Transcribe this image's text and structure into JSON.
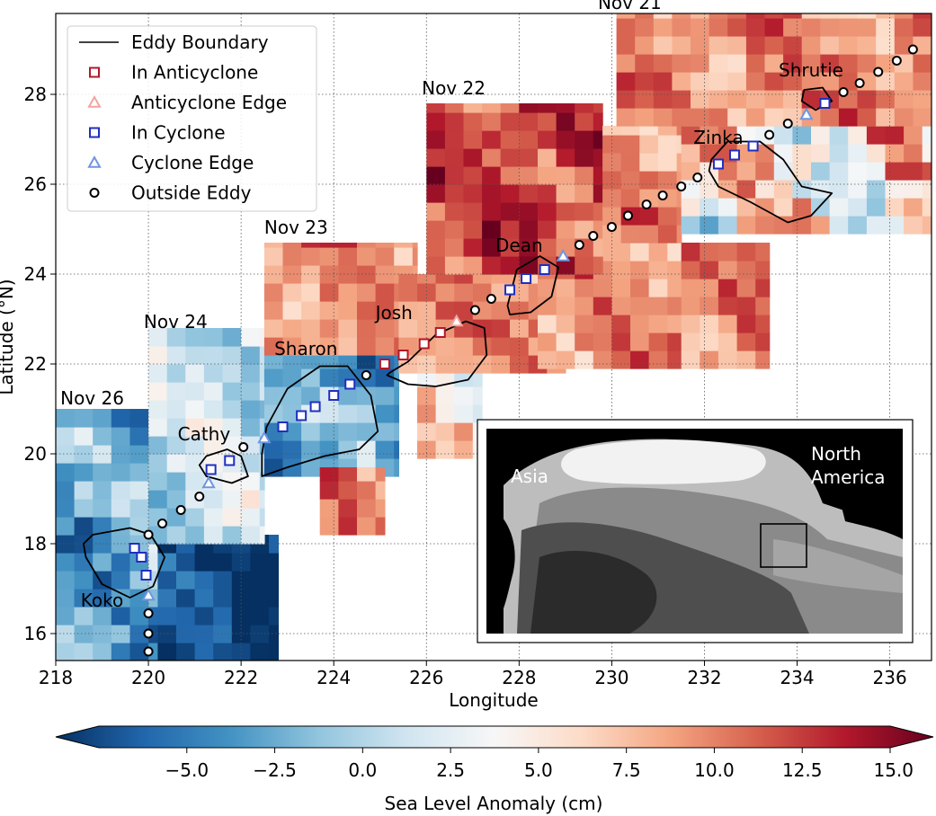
{
  "chart_data": {
    "type": "scatter",
    "title": "",
    "xlabel": "Longitude",
    "ylabel": "Latitude (°N)",
    "xlim": [
      218,
      236.9
    ],
    "ylim": [
      15.4,
      29.8
    ],
    "xticks": [
      218,
      220,
      222,
      224,
      226,
      228,
      230,
      232,
      234,
      236
    ],
    "yticks": [
      16,
      18,
      20,
      22,
      24,
      26,
      28
    ],
    "grid": true,
    "background": "sea level anomaly map (red = positive, blue = negative)",
    "legend": {
      "placement": "top-left",
      "entries": [
        {
          "label": "Eddy Boundary",
          "marker": "line",
          "color": "#000000"
        },
        {
          "label": "In Anticyclone",
          "marker": "square",
          "color": "#b2182b"
        },
        {
          "label": "Anticyclone Edge",
          "marker": "triangle",
          "color": "#f4a3a0"
        },
        {
          "label": "In Cyclone",
          "marker": "square",
          "color": "#1f2fbf"
        },
        {
          "label": "Cyclone Edge",
          "marker": "triangle",
          "color": "#6f96e0"
        },
        {
          "label": "Outside Eddy",
          "marker": "circle",
          "color": "#000000"
        }
      ]
    },
    "date_labels": [
      {
        "text": "Nov 21",
        "x": 229.7,
        "y": 29.9
      },
      {
        "text": "Nov 22",
        "x": 225.9,
        "y": 28.0
      },
      {
        "text": "Nov 23",
        "x": 222.5,
        "y": 24.9
      },
      {
        "text": "Nov 24",
        "x": 219.9,
        "y": 22.8
      },
      {
        "text": "Nov 26",
        "x": 218.1,
        "y": 21.1
      }
    ],
    "eddies": [
      {
        "name": "Koko",
        "type": "cyclone",
        "label_x": 219.0,
        "label_y": 16.6,
        "boundary": [
          [
            218.8,
            18.2
          ],
          [
            219.6,
            18.35
          ],
          [
            220.05,
            18.2
          ],
          [
            220.35,
            17.7
          ],
          [
            220.1,
            17.05
          ],
          [
            219.6,
            16.8
          ],
          [
            219.0,
            17.1
          ],
          [
            218.65,
            17.7
          ],
          [
            218.6,
            18.0
          ]
        ]
      },
      {
        "name": "Cathy",
        "type": "cyclone",
        "label_x": 221.2,
        "label_y": 20.3,
        "boundary": [
          [
            221.25,
            19.95
          ],
          [
            221.7,
            20.1
          ],
          [
            222.0,
            19.95
          ],
          [
            222.15,
            19.5
          ],
          [
            221.8,
            19.35
          ],
          [
            221.25,
            19.5
          ],
          [
            221.1,
            19.75
          ]
        ]
      },
      {
        "name": "Sharon",
        "type": "cyclone",
        "label_x": 223.4,
        "label_y": 22.2,
        "boundary": [
          [
            222.55,
            20.6
          ],
          [
            223.0,
            21.45
          ],
          [
            223.7,
            21.95
          ],
          [
            224.3,
            21.95
          ],
          [
            224.8,
            21.3
          ],
          [
            224.95,
            20.5
          ],
          [
            224.55,
            20.1
          ],
          [
            223.8,
            19.95
          ],
          [
            223.0,
            19.7
          ],
          [
            222.45,
            19.5
          ],
          [
            222.45,
            20.0
          ]
        ]
      },
      {
        "name": "Josh",
        "type": "anticyclone",
        "label_x": 225.3,
        "label_y": 23.0,
        "boundary": [
          [
            225.2,
            21.8
          ],
          [
            225.6,
            22.05
          ],
          [
            226.2,
            22.65
          ],
          [
            226.85,
            22.95
          ],
          [
            227.25,
            22.8
          ],
          [
            227.3,
            22.2
          ],
          [
            226.9,
            21.65
          ],
          [
            226.2,
            21.5
          ],
          [
            225.6,
            21.55
          ],
          [
            225.15,
            21.75
          ]
        ]
      },
      {
        "name": "Dean",
        "type": "cyclone",
        "label_x": 228.0,
        "label_y": 24.5,
        "boundary": [
          [
            227.75,
            23.3
          ],
          [
            227.95,
            24.1
          ],
          [
            228.45,
            24.4
          ],
          [
            228.85,
            24.15
          ],
          [
            228.7,
            23.5
          ],
          [
            228.25,
            23.15
          ],
          [
            227.8,
            23.1
          ]
        ]
      },
      {
        "name": "Zinka",
        "type": "cyclone",
        "label_x": 232.3,
        "label_y": 26.9,
        "boundary": [
          [
            232.15,
            26.55
          ],
          [
            232.5,
            26.95
          ],
          [
            233.2,
            26.95
          ],
          [
            233.7,
            26.55
          ],
          [
            234.1,
            25.95
          ],
          [
            234.75,
            25.8
          ],
          [
            234.3,
            25.3
          ],
          [
            233.8,
            25.15
          ],
          [
            233.0,
            25.6
          ],
          [
            232.3,
            25.95
          ],
          [
            232.1,
            26.3
          ]
        ]
      },
      {
        "name": "Shrutie",
        "type": "anticyclone",
        "label_x": 234.3,
        "label_y": 28.4,
        "boundary": [
          [
            234.15,
            28.1
          ],
          [
            234.55,
            28.15
          ],
          [
            234.75,
            27.85
          ],
          [
            234.4,
            27.65
          ],
          [
            234.1,
            27.85
          ]
        ]
      }
    ],
    "track_points": [
      {
        "x": 220.0,
        "y": 15.6,
        "cls": "outside"
      },
      {
        "x": 220.0,
        "y": 16.0,
        "cls": "outside"
      },
      {
        "x": 220.0,
        "y": 16.45,
        "cls": "outside"
      },
      {
        "x": 220.0,
        "y": 16.85,
        "cls": "cyclone_edge"
      },
      {
        "x": 219.95,
        "y": 17.3,
        "cls": "cyclone"
      },
      {
        "x": 219.85,
        "y": 17.7,
        "cls": "cyclone"
      },
      {
        "x": 219.7,
        "y": 17.9,
        "cls": "cyclone"
      },
      {
        "x": 220.0,
        "y": 18.2,
        "cls": "outside"
      },
      {
        "x": 220.3,
        "y": 18.45,
        "cls": "outside"
      },
      {
        "x": 220.7,
        "y": 18.75,
        "cls": "outside"
      },
      {
        "x": 221.1,
        "y": 19.05,
        "cls": "outside"
      },
      {
        "x": 221.3,
        "y": 19.35,
        "cls": "cyclone_edge"
      },
      {
        "x": 221.35,
        "y": 19.65,
        "cls": "cyclone"
      },
      {
        "x": 221.75,
        "y": 19.85,
        "cls": "cyclone"
      },
      {
        "x": 222.05,
        "y": 20.15,
        "cls": "outside"
      },
      {
        "x": 222.5,
        "y": 20.35,
        "cls": "cyclone_edge"
      },
      {
        "x": 222.9,
        "y": 20.6,
        "cls": "cyclone"
      },
      {
        "x": 223.3,
        "y": 20.85,
        "cls": "cyclone"
      },
      {
        "x": 223.6,
        "y": 21.05,
        "cls": "cyclone"
      },
      {
        "x": 224.0,
        "y": 21.3,
        "cls": "cyclone"
      },
      {
        "x": 224.35,
        "y": 21.55,
        "cls": "cyclone"
      },
      {
        "x": 224.7,
        "y": 21.75,
        "cls": "outside"
      },
      {
        "x": 225.1,
        "y": 22.0,
        "cls": "anticyclone"
      },
      {
        "x": 225.5,
        "y": 22.2,
        "cls": "anticyclone"
      },
      {
        "x": 225.95,
        "y": 22.45,
        "cls": "anticyclone"
      },
      {
        "x": 226.3,
        "y": 22.7,
        "cls": "anticyclone"
      },
      {
        "x": 226.65,
        "y": 22.95,
        "cls": "anticyclone_edge"
      },
      {
        "x": 227.05,
        "y": 23.2,
        "cls": "outside"
      },
      {
        "x": 227.4,
        "y": 23.45,
        "cls": "outside"
      },
      {
        "x": 227.8,
        "y": 23.65,
        "cls": "cyclone"
      },
      {
        "x": 228.15,
        "y": 23.9,
        "cls": "cyclone"
      },
      {
        "x": 228.55,
        "y": 24.1,
        "cls": "cyclone"
      },
      {
        "x": 228.95,
        "y": 24.4,
        "cls": "cyclone_edge"
      },
      {
        "x": 229.3,
        "y": 24.65,
        "cls": "outside"
      },
      {
        "x": 229.6,
        "y": 24.85,
        "cls": "outside"
      },
      {
        "x": 230.0,
        "y": 25.05,
        "cls": "outside"
      },
      {
        "x": 230.35,
        "y": 25.3,
        "cls": "outside"
      },
      {
        "x": 230.75,
        "y": 25.55,
        "cls": "outside"
      },
      {
        "x": 231.1,
        "y": 25.75,
        "cls": "outside"
      },
      {
        "x": 231.5,
        "y": 25.95,
        "cls": "outside"
      },
      {
        "x": 231.85,
        "y": 26.15,
        "cls": "outside"
      },
      {
        "x": 232.3,
        "y": 26.45,
        "cls": "cyclone"
      },
      {
        "x": 232.65,
        "y": 26.65,
        "cls": "cyclone"
      },
      {
        "x": 233.05,
        "y": 26.85,
        "cls": "cyclone"
      },
      {
        "x": 233.4,
        "y": 27.1,
        "cls": "outside"
      },
      {
        "x": 233.8,
        "y": 27.35,
        "cls": "outside"
      },
      {
        "x": 234.2,
        "y": 27.55,
        "cls": "cyclone_edge"
      },
      {
        "x": 234.6,
        "y": 27.8,
        "cls": "cyclone"
      },
      {
        "x": 235.0,
        "y": 28.05,
        "cls": "outside"
      },
      {
        "x": 235.35,
        "y": 28.25,
        "cls": "outside"
      },
      {
        "x": 235.75,
        "y": 28.5,
        "cls": "outside"
      },
      {
        "x": 236.15,
        "y": 28.75,
        "cls": "outside"
      },
      {
        "x": 236.5,
        "y": 29.0,
        "cls": "outside"
      }
    ],
    "colorbar": {
      "label": "Sea Level Anomaly (cm)",
      "min": -7.5,
      "max": 15.0,
      "extend": "both",
      "ticks": [
        -5.0,
        -2.5,
        0.0,
        2.5,
        5.0,
        7.5,
        10.0,
        12.5,
        15.0
      ],
      "tick_labels": [
        "−5.0",
        "−2.5",
        "0.0",
        "2.5",
        "5.0",
        "7.5",
        "10.0",
        "12.5",
        "15.0"
      ],
      "cmap": [
        "#053061",
        "#2166ac",
        "#4393c3",
        "#92c5de",
        "#d1e5f0",
        "#f7f7f7",
        "#fddbc7",
        "#f4a582",
        "#d6604d",
        "#b2182b",
        "#67001f"
      ]
    },
    "inset": {
      "type": "map",
      "labels": [
        "Asia",
        "North\nAmerica"
      ],
      "label_asia": "Asia",
      "label_na_line1": "North",
      "label_na_line2": "America"
    }
  }
}
